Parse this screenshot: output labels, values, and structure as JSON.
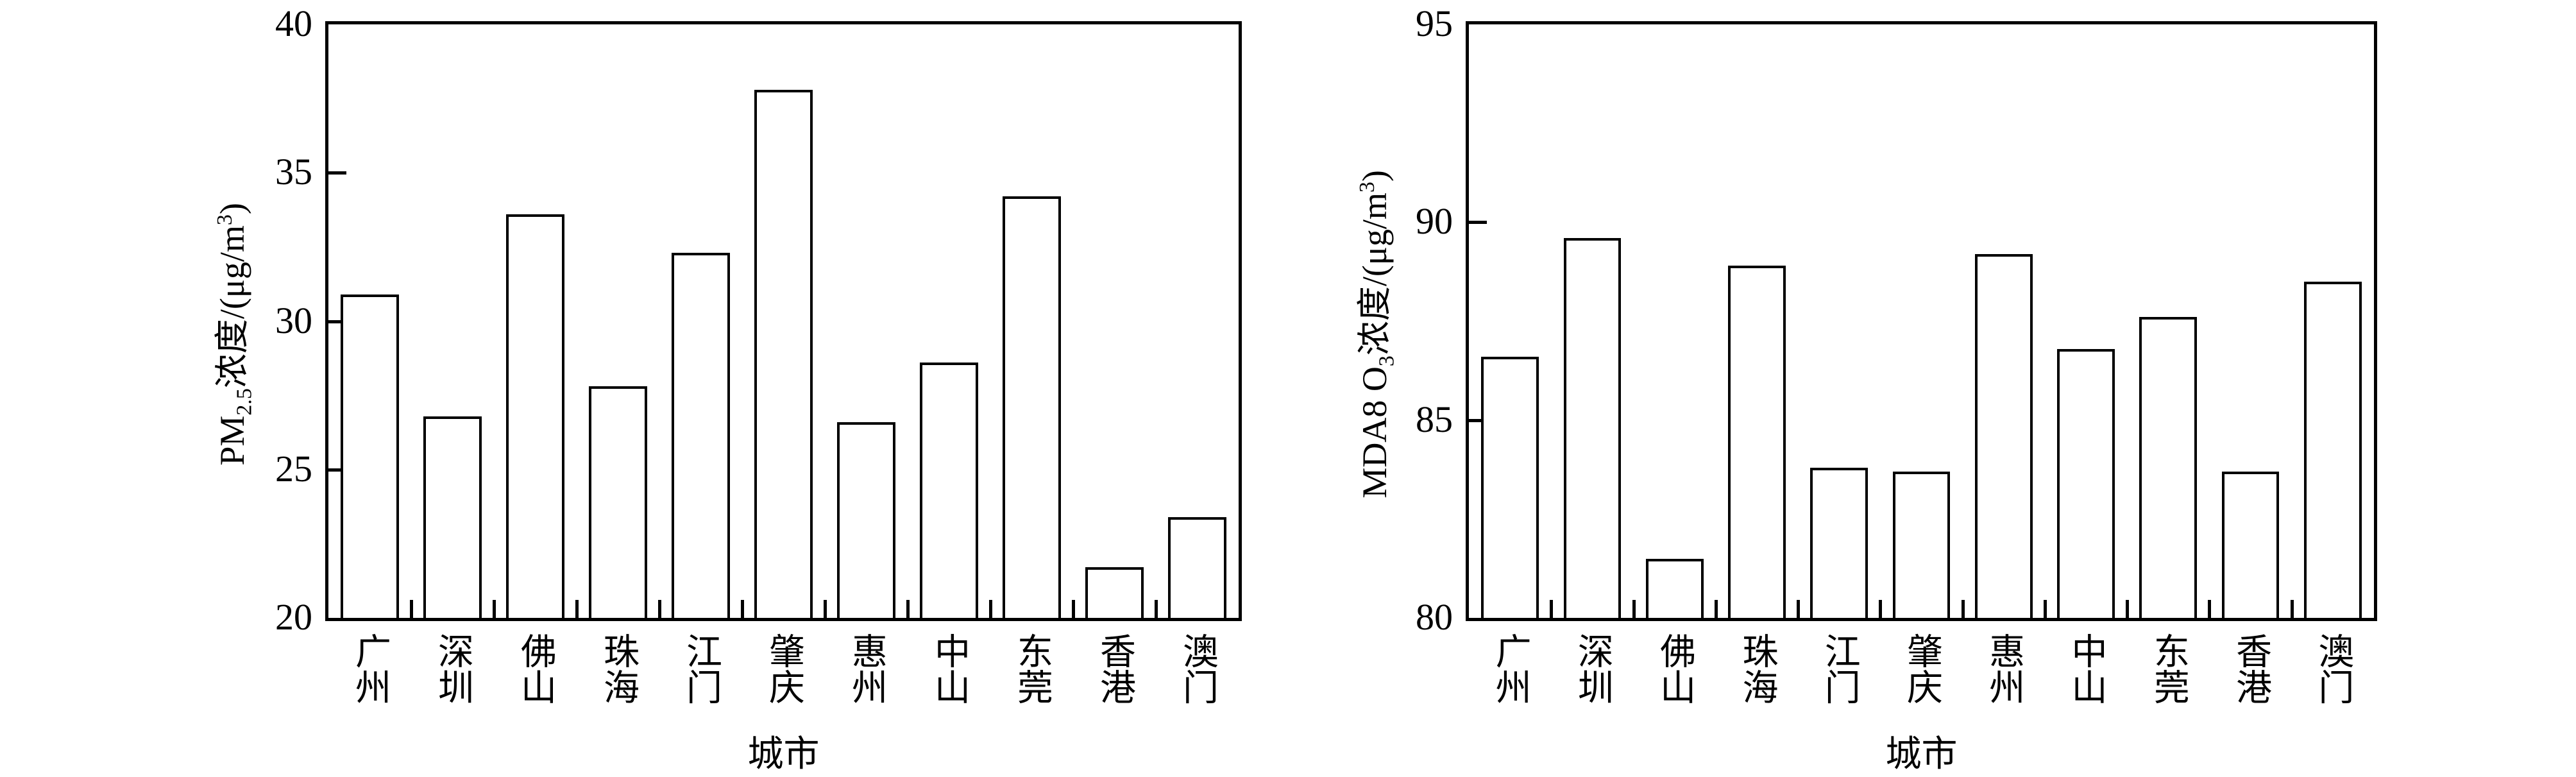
{
  "chart_data": [
    {
      "type": "bar",
      "title": "",
      "xlabel": "城市",
      "ylabel": "PM2.5浓度/(μg/m3)",
      "ylabel_parts": {
        "pre": "PM",
        "sub": "2.5",
        "mid": "浓度/(μg/m",
        "sup": "3",
        "post": ")"
      },
      "ylim": [
        20,
        40
      ],
      "yticks": [
        20,
        25,
        30,
        35,
        40
      ],
      "grid": false,
      "legend": null,
      "categories": [
        "广州",
        "深圳",
        "佛山",
        "珠海",
        "江门",
        "肇庆",
        "惠州",
        "中山",
        "东莞",
        "香港",
        "澳门"
      ],
      "values": [
        30.9,
        26.8,
        33.6,
        27.8,
        32.3,
        37.8,
        26.6,
        28.6,
        34.2,
        21.7,
        23.4
      ],
      "bar_fill": "#ffffff",
      "bar_edge": "#000000"
    },
    {
      "type": "bar",
      "title": "",
      "xlabel": "城市",
      "ylabel": "MDA8 O3浓度/(μg/m3)",
      "ylabel_parts": {
        "pre": "MDA8 O",
        "sub": "3",
        "mid": "浓度/(μg/m",
        "sup": "3",
        "post": ")"
      },
      "ylim": [
        80,
        95
      ],
      "yticks": [
        80,
        85,
        90,
        95
      ],
      "grid": false,
      "legend": null,
      "categories": [
        "广州",
        "深圳",
        "佛山",
        "珠海",
        "江门",
        "肇庆",
        "惠州",
        "中山",
        "东莞",
        "香港",
        "澳门"
      ],
      "values": [
        86.6,
        89.6,
        81.5,
        88.9,
        83.8,
        83.7,
        89.2,
        86.8,
        87.6,
        83.7,
        88.5
      ],
      "bar_fill": "#ffffff",
      "bar_edge": "#000000"
    }
  ]
}
